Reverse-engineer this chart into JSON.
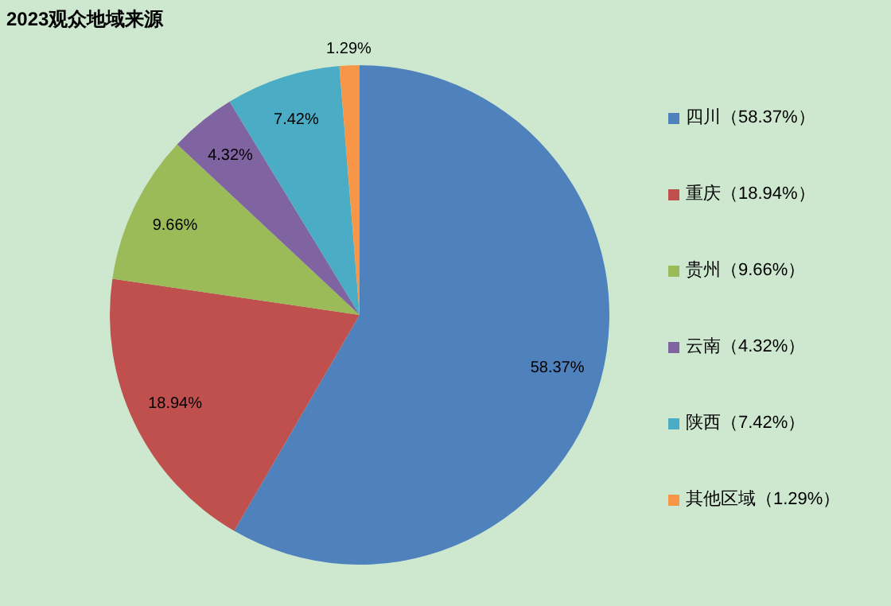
{
  "chart_data": {
    "type": "pie",
    "title": "2023观众地域来源",
    "categories": [
      "四川（58.37%）",
      "重庆（18.94%）",
      "贵州（9.66%）",
      "云南（4.32%）",
      "陕西（7.42%）",
      "其他区域（1.29%）"
    ],
    "values": [
      58.37,
      18.94,
      9.66,
      4.32,
      7.42,
      1.29
    ],
    "value_labels": [
      "58.37%",
      "18.94%",
      "9.66%",
      "4.32%",
      "7.42%",
      "1.29%"
    ],
    "colors": [
      "#4f81bd",
      "#c0504d",
      "#9bbb59",
      "#8064a2",
      "#4bacc6",
      "#f79646"
    ],
    "legend": "right"
  }
}
